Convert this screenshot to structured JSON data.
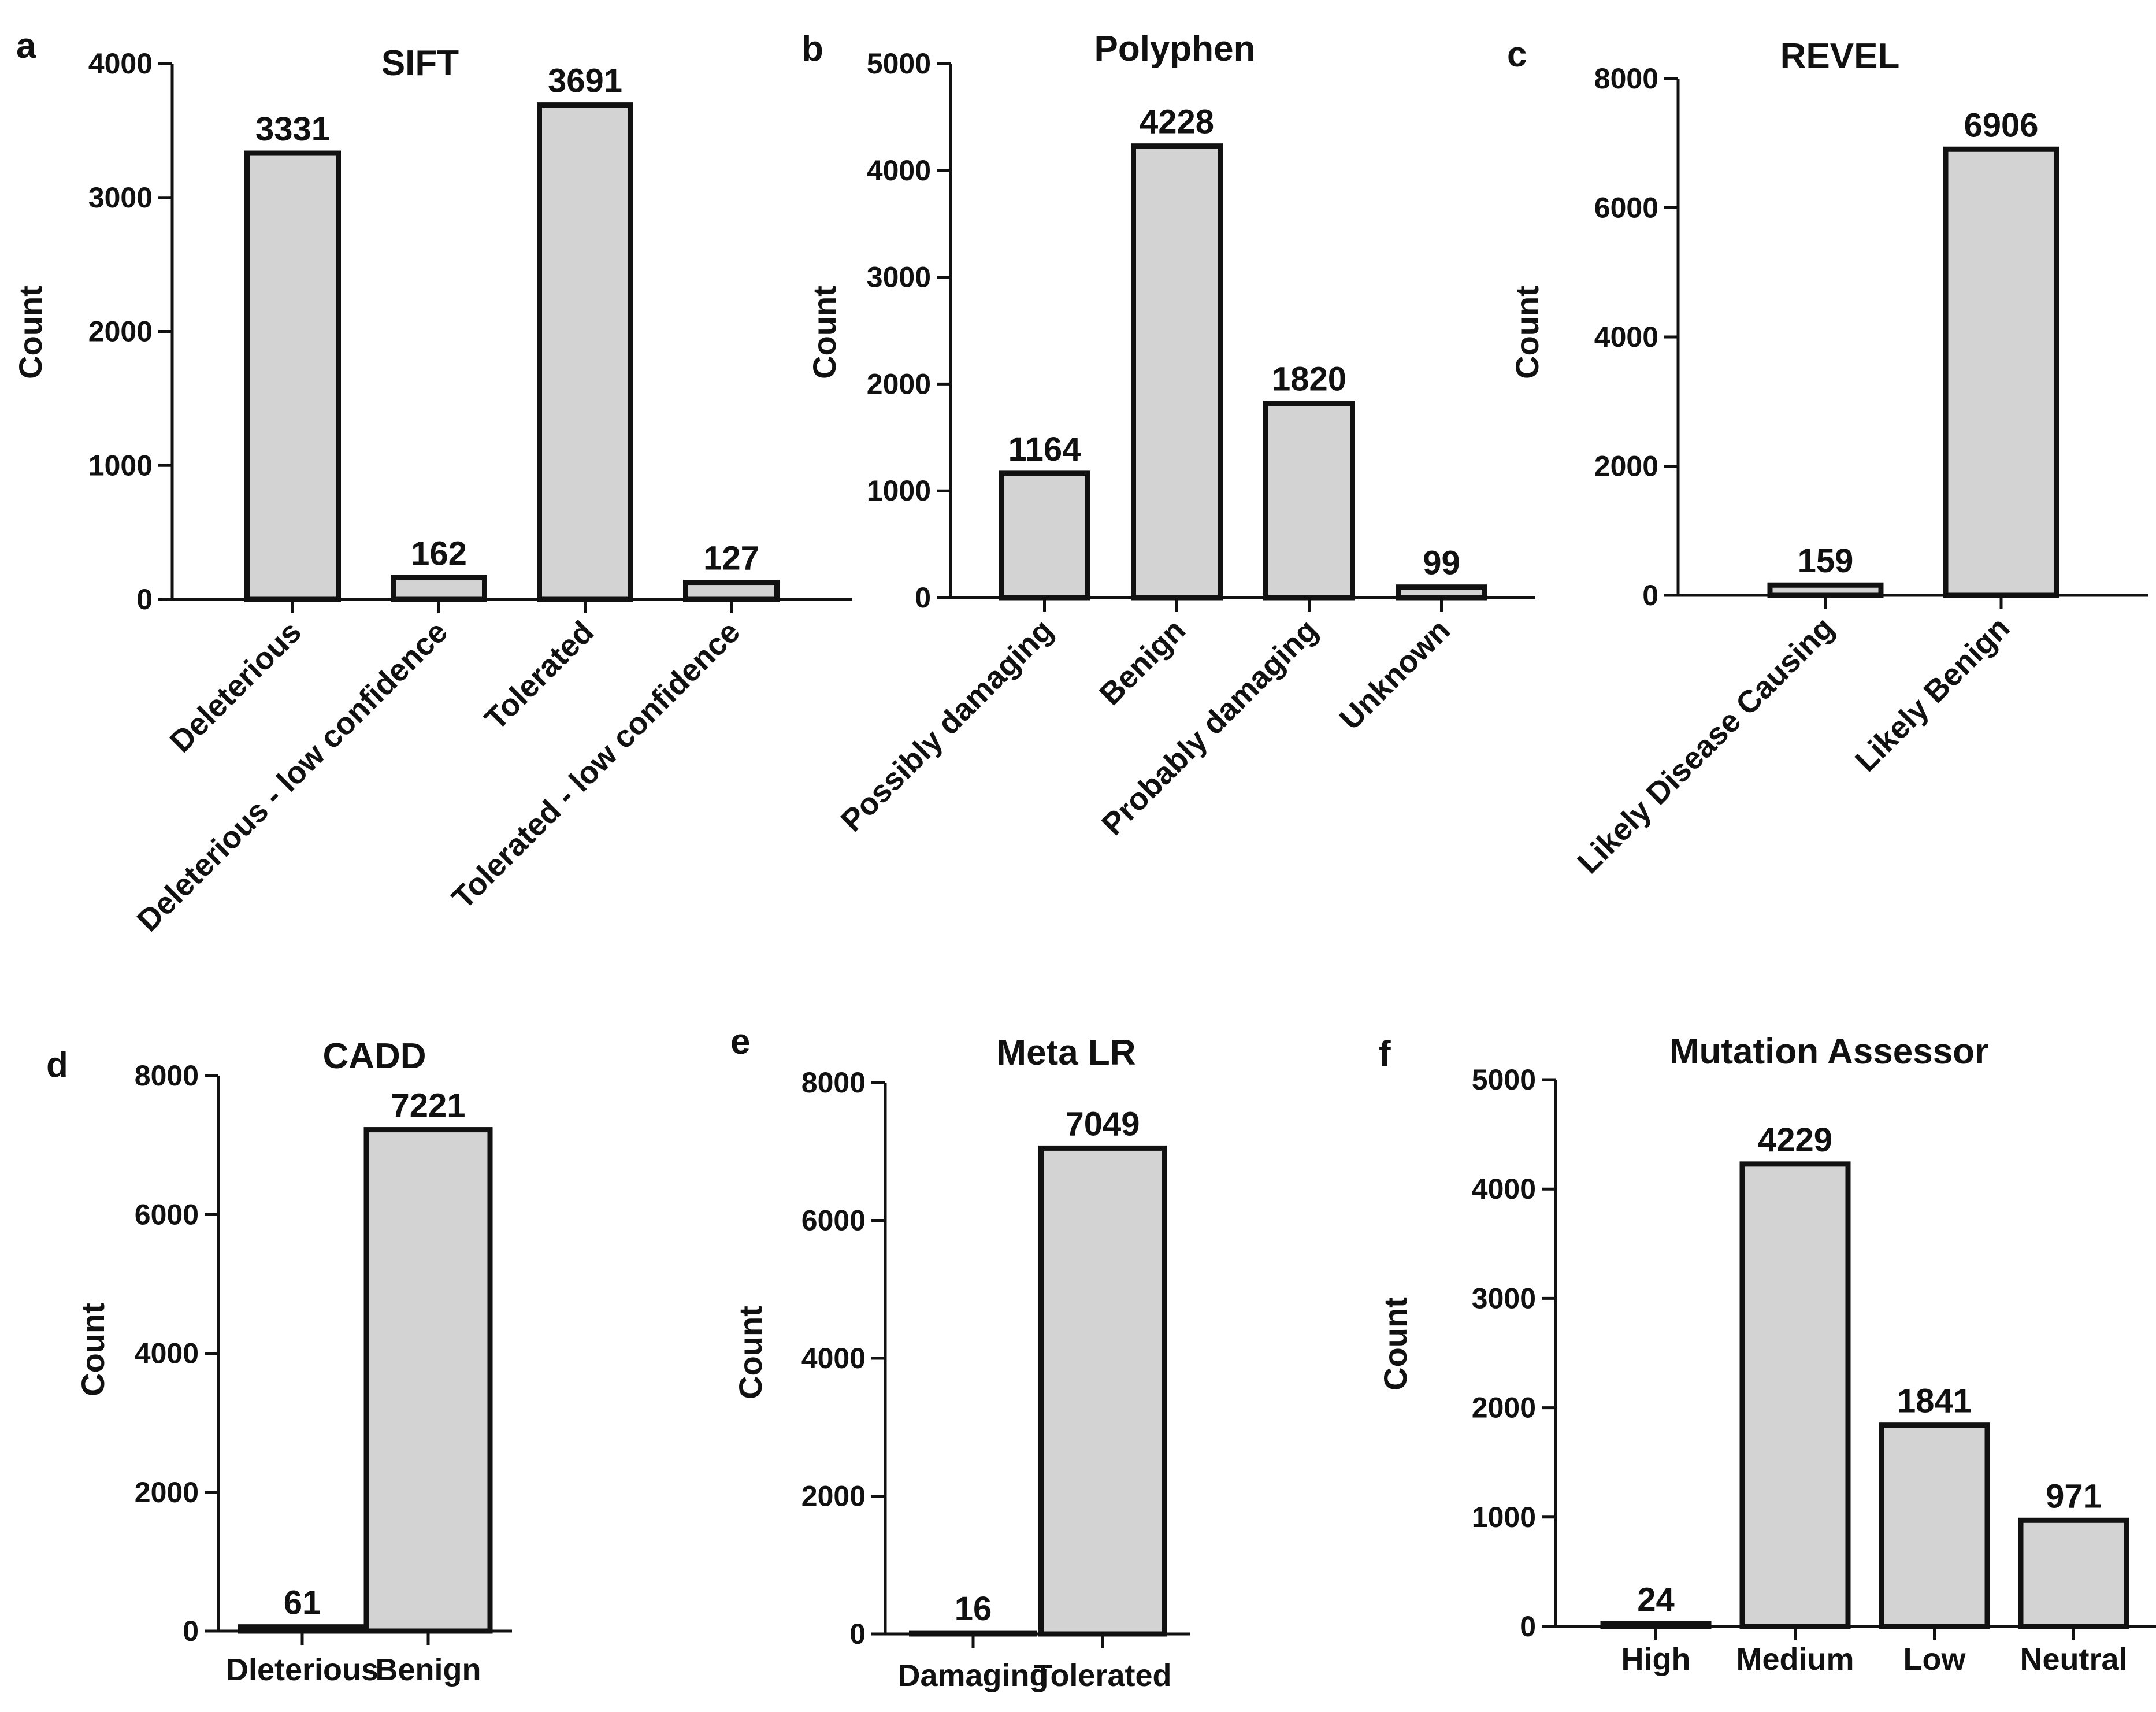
{
  "bar_color": "#d3d3d3",
  "edge_color": "#111111",
  "chart_data": [
    {
      "panel": "a",
      "type": "bar",
      "title": "SIFT",
      "xlabel": "",
      "ylabel": "Count",
      "ylim": [
        0,
        4000
      ],
      "yticks": [
        0,
        1000,
        2000,
        3000,
        4000
      ],
      "categories": [
        "Deleterious",
        "Deleterious - low confidence",
        "Tolerated",
        "Tolerated - low confidence"
      ],
      "values": [
        3331,
        162,
        3691,
        127
      ],
      "value_labels": [
        "3331",
        "162",
        "3691",
        "127"
      ]
    },
    {
      "panel": "b",
      "type": "bar",
      "title": "Polyphen",
      "xlabel": "",
      "ylabel": "Count",
      "ylim": [
        0,
        5000
      ],
      "yticks": [
        0,
        1000,
        2000,
        3000,
        4000,
        5000
      ],
      "categories": [
        "Possibly damaging",
        "Benign",
        "Probably damaging",
        "Unknown"
      ],
      "values": [
        1164,
        4228,
        1820,
        99
      ],
      "value_labels": [
        "1164",
        "4228",
        "1820",
        "99"
      ]
    },
    {
      "panel": "c",
      "type": "bar",
      "title": "REVEL",
      "xlabel": "",
      "ylabel": "Count",
      "ylim": [
        0,
        8000
      ],
      "yticks": [
        0,
        2000,
        4000,
        6000,
        8000
      ],
      "categories": [
        "Likely Disease Causing",
        "Likely Benign"
      ],
      "values": [
        159,
        6906
      ],
      "value_labels": [
        "159",
        "6906"
      ]
    },
    {
      "panel": "d",
      "type": "bar",
      "title": "CADD",
      "xlabel": "",
      "ylabel": "Count",
      "ylim": [
        0,
        8000
      ],
      "yticks": [
        0,
        2000,
        4000,
        6000,
        8000
      ],
      "categories": [
        "Dleterious",
        "Benign"
      ],
      "values": [
        61,
        7221
      ],
      "value_labels": [
        "61",
        "7221"
      ]
    },
    {
      "panel": "e",
      "type": "bar",
      "title": "Meta LR",
      "xlabel": "",
      "ylabel": "Count",
      "ylim": [
        0,
        8000
      ],
      "yticks": [
        0,
        2000,
        4000,
        6000,
        8000
      ],
      "categories": [
        "Damaging",
        "Tolerated"
      ],
      "values": [
        16,
        7049
      ],
      "value_labels": [
        "16",
        "7049"
      ]
    },
    {
      "panel": "f",
      "type": "bar",
      "title": "Mutation Assessor",
      "xlabel": "",
      "ylabel": "Count",
      "ylim": [
        0,
        5000
      ],
      "yticks": [
        0,
        1000,
        2000,
        3000,
        4000,
        5000
      ],
      "categories": [
        "High",
        "Medium",
        "Low",
        "Neutral"
      ],
      "values": [
        24,
        4229,
        1841,
        971
      ],
      "value_labels": [
        "24",
        "4229",
        "1841",
        "971"
      ]
    }
  ]
}
